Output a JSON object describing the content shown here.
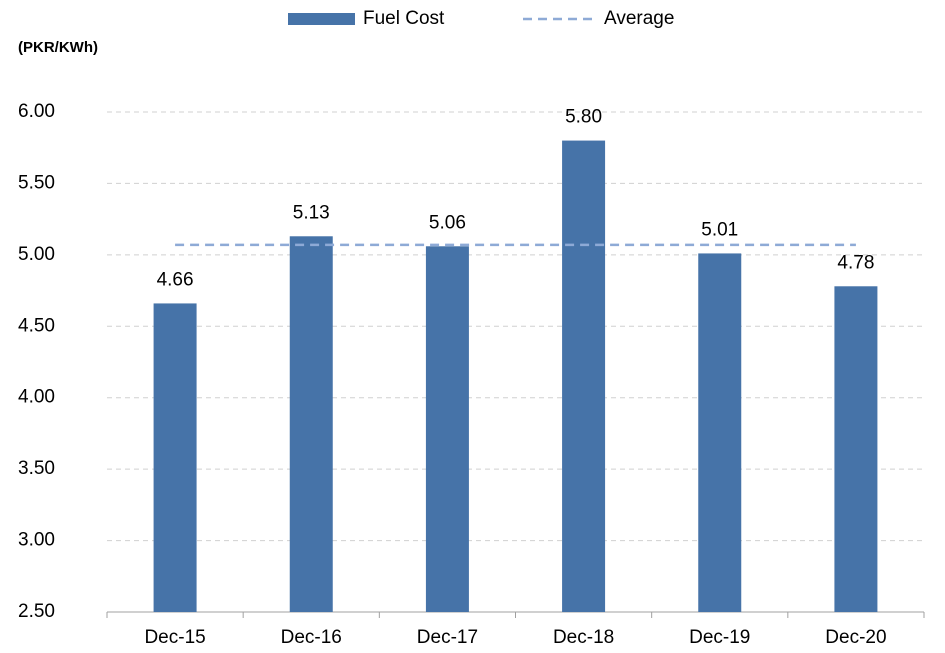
{
  "chart_data": {
    "type": "bar",
    "y_label": "(PKR/KWh)",
    "categories": [
      "Dec-15",
      "Dec-16",
      "Dec-17",
      "Dec-18",
      "Dec-19",
      "Dec-20"
    ],
    "series": [
      {
        "name": "Fuel Cost",
        "type": "bar",
        "color": "#4673a8",
        "values": [
          4.66,
          5.13,
          5.06,
          5.8,
          5.01,
          4.78
        ],
        "value_labels": [
          "4.66",
          "5.13",
          "5.06",
          "5.80",
          "5.01",
          "4.78"
        ]
      },
      {
        "name": "Average",
        "type": "line",
        "color": "#8eaad6",
        "values": [
          5.07,
          5.07,
          5.07,
          5.07,
          5.07,
          5.07
        ]
      }
    ],
    "ylim": [
      2.5,
      6.0
    ],
    "yticks": [
      {
        "value": 2.5,
        "label": "2.50"
      },
      {
        "value": 3.0,
        "label": "3.00"
      },
      {
        "value": 3.5,
        "label": "3.50"
      },
      {
        "value": 4.0,
        "label": "4.00"
      },
      {
        "value": 4.5,
        "label": "4.50"
      },
      {
        "value": 5.0,
        "label": "5.00"
      },
      {
        "value": 5.5,
        "label": "5.50"
      },
      {
        "value": 6.0,
        "label": "6.00"
      }
    ],
    "grid": true,
    "legend": "top"
  }
}
